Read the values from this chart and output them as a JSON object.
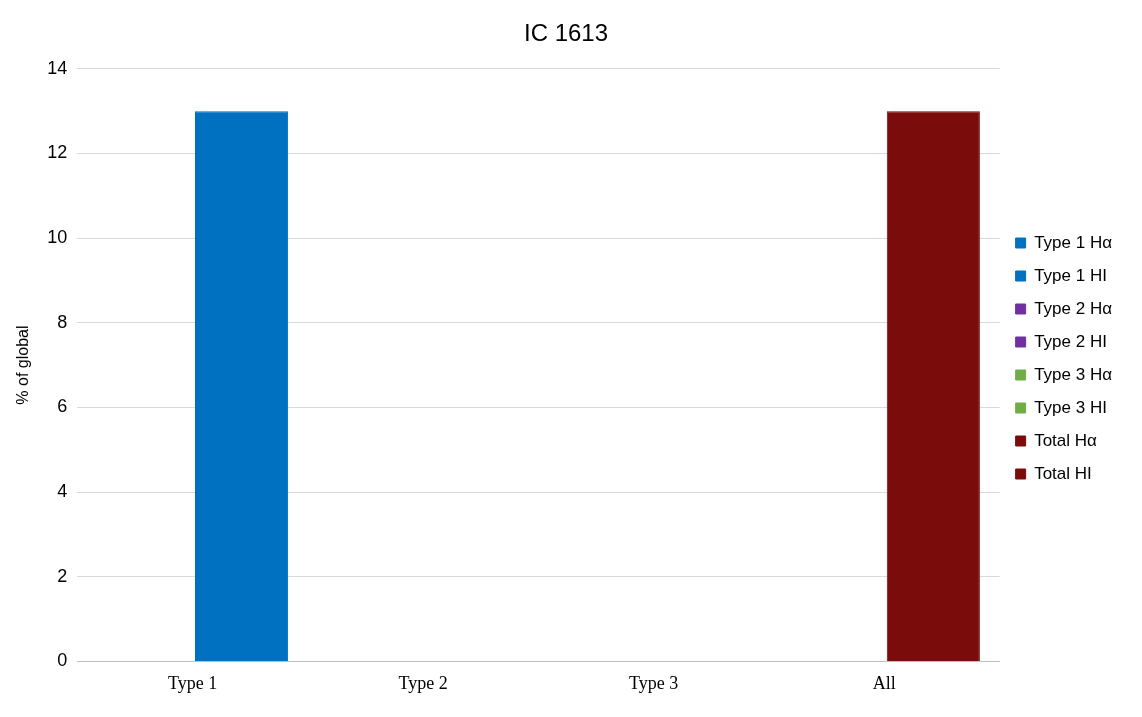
{
  "chart_data": {
    "type": "bar",
    "title": "IC 1613",
    "ylabel": "% of global",
    "categories": [
      "Type 1",
      "Type 2",
      "Type 3",
      "All"
    ],
    "series": [
      {
        "name": "Type 1 Hα",
        "color": "#0070c0",
        "values": [
          0,
          null,
          null,
          null
        ]
      },
      {
        "name": "Type 1 HI",
        "color": "#0070c0",
        "values": [
          13,
          null,
          null,
          null
        ]
      },
      {
        "name": "Type 2 Hα",
        "color": "#7030a0",
        "values": [
          null,
          null,
          null,
          null
        ]
      },
      {
        "name": "Type 2 HI",
        "color": "#7030a0",
        "values": [
          null,
          null,
          null,
          null
        ]
      },
      {
        "name": "Type 3 Hα",
        "color": "#70ad47",
        "values": [
          null,
          null,
          null,
          null
        ]
      },
      {
        "name": "Type 3 HI",
        "color": "#70ad47",
        "values": [
          null,
          null,
          null,
          null
        ]
      },
      {
        "name": "Total Hα",
        "color": "#7b0c0c",
        "values": [
          null,
          null,
          null,
          0
        ]
      },
      {
        "name": "Total HI",
        "color": "#7b0c0c",
        "values": [
          null,
          null,
          null,
          13
        ]
      }
    ],
    "ylim": [
      0,
      14
    ],
    "yticks": [
      0,
      2,
      4,
      6,
      8,
      10,
      12,
      14
    ],
    "grid": "y",
    "legend": "right"
  }
}
